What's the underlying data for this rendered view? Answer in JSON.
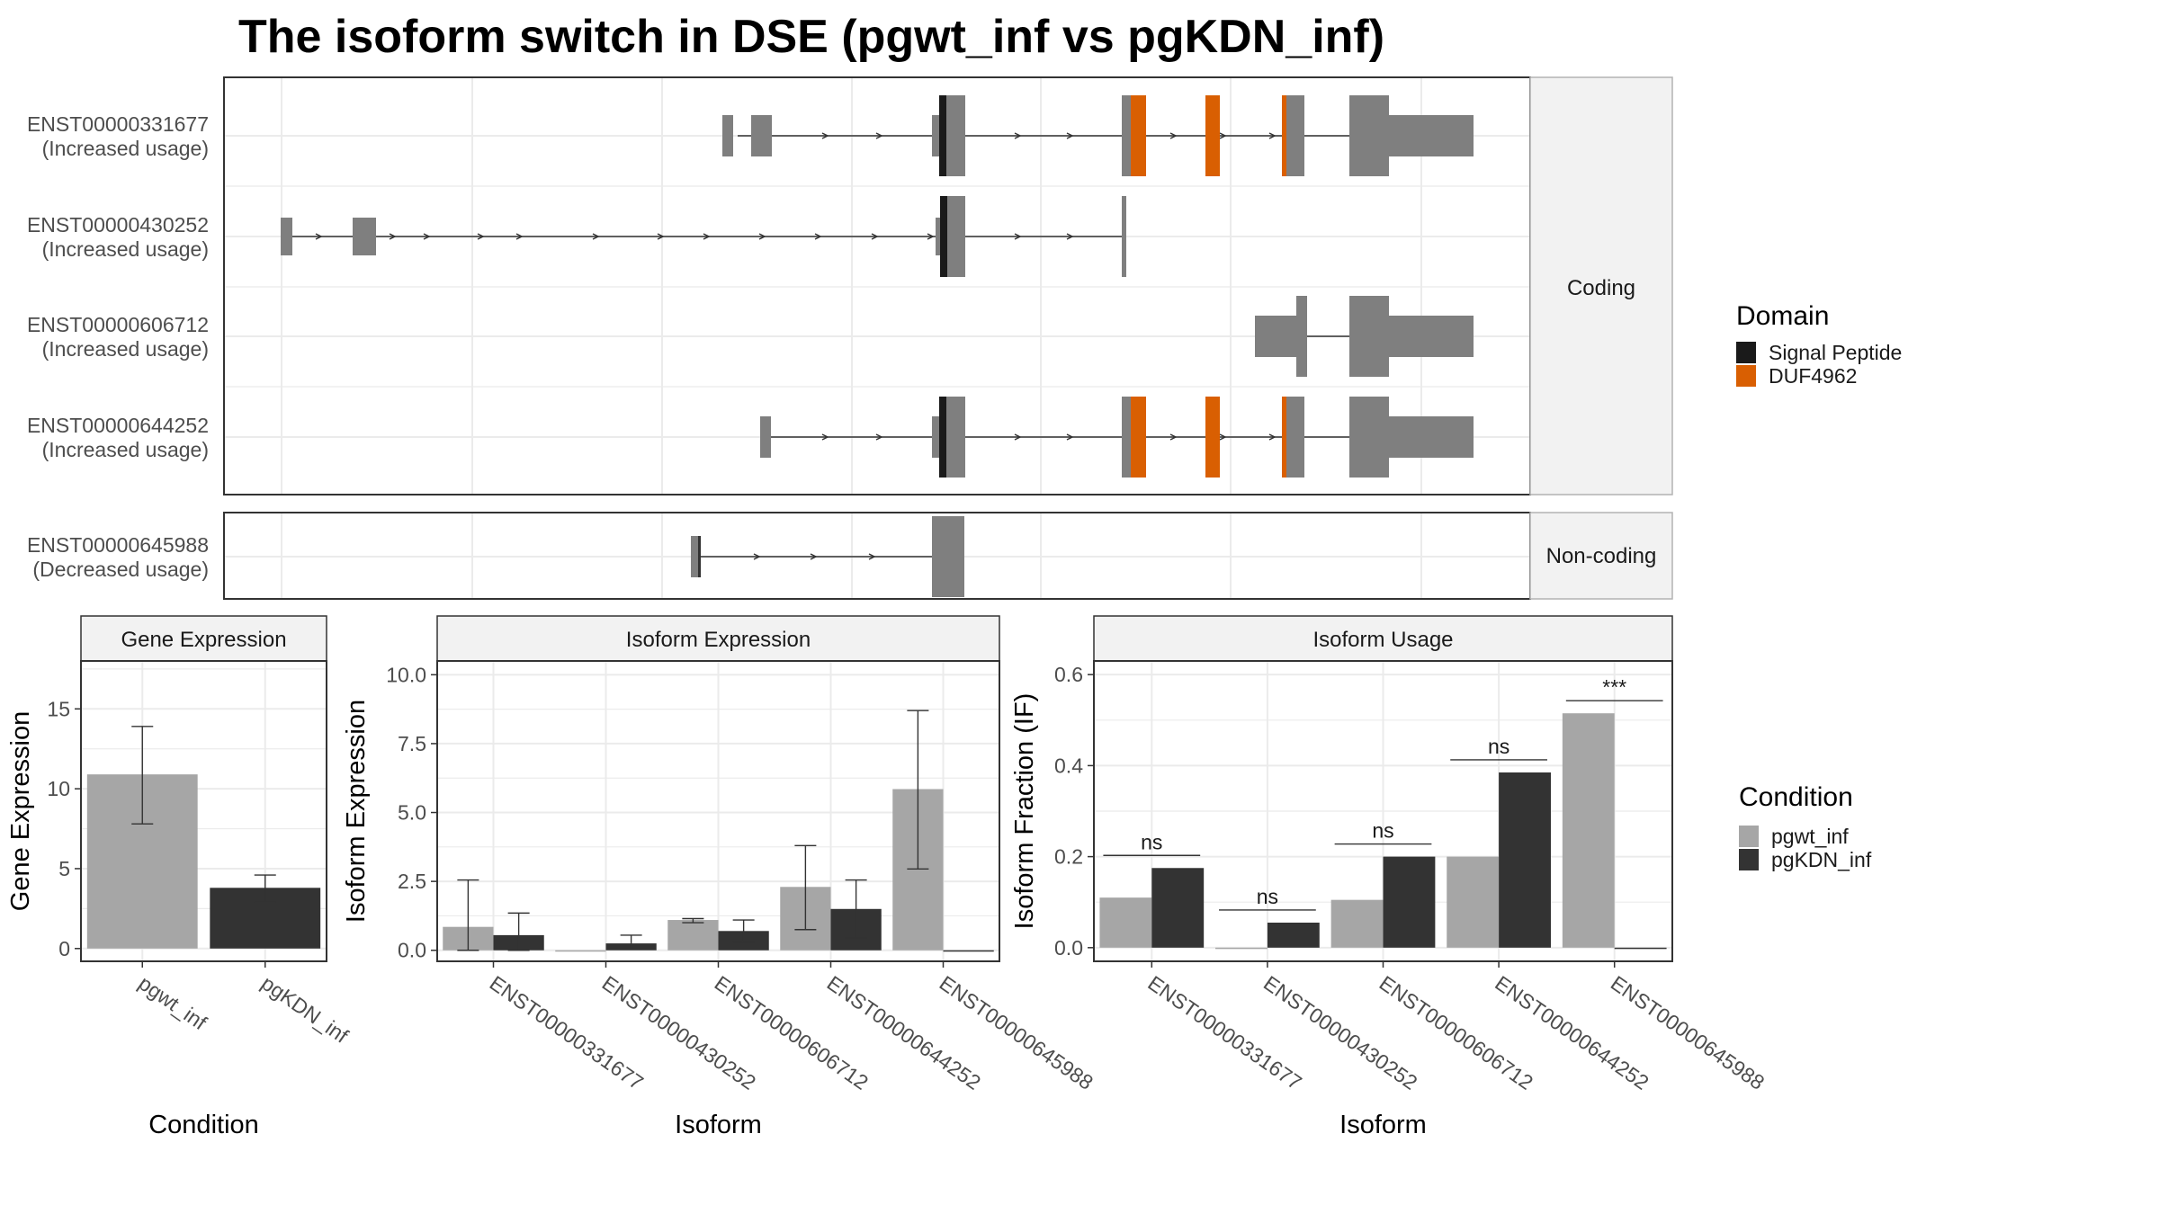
{
  "title": "The isoform switch in DSE (pgwt_inf vs pgKDN_inf)",
  "colors": {
    "exon": "#7f7f7f",
    "signal_peptide": "#1a1a1a",
    "duf": "#d95f02",
    "pgwt_inf": "#a6a6a6",
    "pgKDN_inf": "#333333",
    "grid": "#ebebeb",
    "strip": "#f2f2f2"
  },
  "structure": {
    "coding_strip": "Coding",
    "noncoding_strip": "Non-coding",
    "isoforms": [
      {
        "id": "ENST00000331677",
        "usage": "(Increased usage)",
        "group": "coding"
      },
      {
        "id": "ENST00000430252",
        "usage": "(Increased usage)",
        "group": "coding"
      },
      {
        "id": "ENST00000606712",
        "usage": "(Increased usage)",
        "group": "coding"
      },
      {
        "id": "ENST00000644252",
        "usage": "(Increased usage)",
        "group": "coding"
      },
      {
        "id": "ENST00000645988",
        "usage": "(Decreased usage)",
        "group": "noncoding"
      }
    ]
  },
  "legends": {
    "domain_title": "Domain",
    "domain_items": [
      {
        "label": "Signal Peptide",
        "color": "#1a1a1a"
      },
      {
        "label": "DUF4962",
        "color": "#d95f02"
      }
    ],
    "condition_title": "Condition",
    "condition_items": [
      {
        "label": "pgwt_inf",
        "color": "#a6a6a6"
      },
      {
        "label": "pgKDN_inf",
        "color": "#333333"
      }
    ]
  },
  "chart_data": [
    {
      "type": "bar",
      "title": "Gene Expression",
      "xlabel": "Condition",
      "ylabel": "Gene Expression",
      "categories": [
        "pgwt_inf",
        "pgKDN_inf"
      ],
      "values": [
        10.9,
        3.8
      ],
      "error_low": [
        7.8,
        2.9
      ],
      "error_high": [
        13.9,
        4.6
      ],
      "ylim": [
        -0.8,
        18.0
      ],
      "yticks": [
        "0",
        "5",
        "10",
        "15"
      ],
      "grid": true
    },
    {
      "type": "bar",
      "title": "Isoform Expression",
      "xlabel": "Isoform",
      "ylabel": "Isoform Expression",
      "categories": [
        "ENST00000331677",
        "ENST00000430252",
        "ENST00000606712",
        "ENST00000644252",
        "ENST00000645988"
      ],
      "series": [
        {
          "name": "pgwt_inf",
          "values": [
            0.85,
            0.0,
            1.1,
            2.3,
            5.85
          ],
          "error_low": [
            0.0,
            0.0,
            1.0,
            0.75,
            2.95
          ],
          "error_high": [
            2.55,
            0.0,
            1.15,
            3.8,
            8.7
          ]
        },
        {
          "name": "pgKDN_inf",
          "values": [
            0.55,
            0.25,
            0.7,
            1.5,
            0.0
          ],
          "error_low": [
            0.0,
            0.05,
            0.3,
            0.45,
            0.0
          ],
          "error_high": [
            1.35,
            0.55,
            1.1,
            2.55,
            0.0
          ]
        }
      ],
      "ylim": [
        -0.4,
        10.5
      ],
      "yticks": [
        "0.0",
        "2.5",
        "5.0",
        "7.5",
        "10.0"
      ],
      "grid": true
    },
    {
      "type": "bar",
      "title": "Isoform Usage",
      "xlabel": "Isoform",
      "ylabel": "Isoform Fraction (IF)",
      "categories": [
        "ENST00000331677",
        "ENST00000430252",
        "ENST00000606712",
        "ENST00000644252",
        "ENST00000645988"
      ],
      "series": [
        {
          "name": "pgwt_inf",
          "values": [
            0.11,
            0.0,
            0.105,
            0.2,
            0.515
          ]
        },
        {
          "name": "pgKDN_inf",
          "values": [
            0.175,
            0.055,
            0.2,
            0.385,
            0.0
          ]
        }
      ],
      "significance": [
        "ns",
        "ns",
        "ns",
        "ns",
        "***"
      ],
      "ylim": [
        -0.03,
        0.63
      ],
      "yticks": [
        "0.0",
        "0.2",
        "0.4",
        "0.6"
      ],
      "grid": true
    }
  ]
}
